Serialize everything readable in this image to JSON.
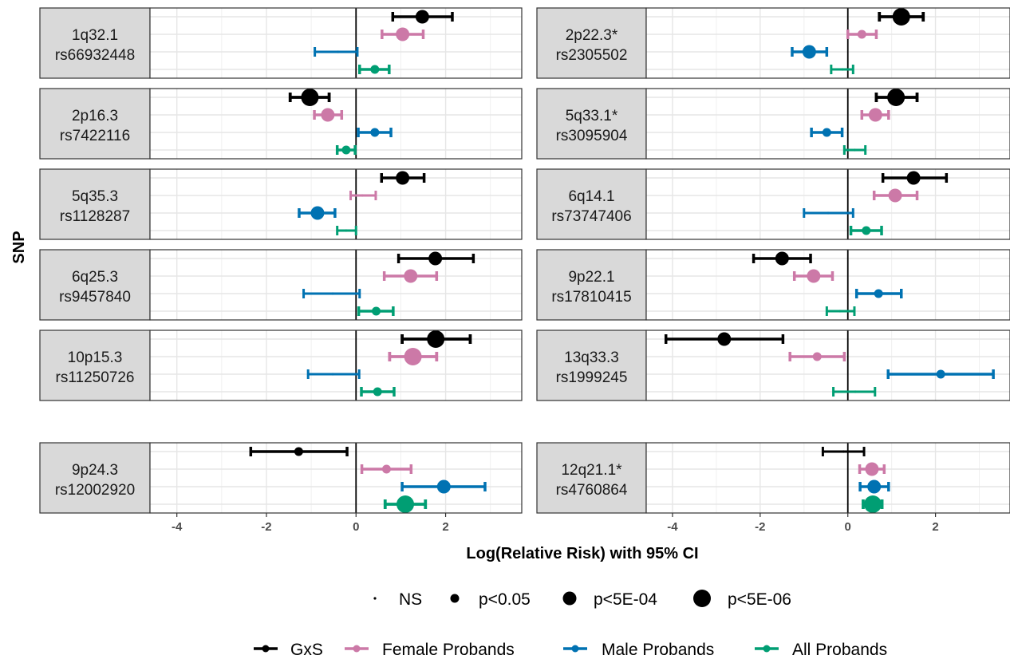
{
  "chart_data": {
    "type": "forest",
    "xlabel": "Log(Relative Risk) with 95% CI",
    "ylabel": "SNP",
    "xlim": [
      -4.6,
      3.7
    ],
    "x_ticks": [
      -4,
      -2,
      0,
      2
    ],
    "x_tick_labels": [
      "-4",
      "-2",
      "0",
      "2"
    ],
    "grid": true,
    "colors": {
      "GxS": "#000000",
      "Female Probands": "#CC79A7",
      "Male Probands": "#0072B2",
      "All Probands": "#009E73"
    },
    "size_legend": [
      {
        "label": "NS",
        "level": 0
      },
      {
        "label": "p<0.05",
        "level": 1
      },
      {
        "label": "p<5E-04",
        "level": 2
      },
      {
        "label": "p<5E-06",
        "level": 3
      }
    ],
    "color_legend": [
      "GxS",
      "Female Probands",
      "Male Probands",
      "All Probands"
    ],
    "panels": [
      {
        "locus": "1q32.1",
        "snp": "rs66932448",
        "rows": [
          {
            "group": "GxS",
            "est": 1.48,
            "lo": 0.82,
            "hi": 2.15,
            "sig": 2
          },
          {
            "group": "Female Probands",
            "est": 1.04,
            "lo": 0.58,
            "hi": 1.5,
            "sig": 2
          },
          {
            "group": "Male Probands",
            "est": -0.4,
            "lo": -0.92,
            "hi": 0.03,
            "sig": 0
          },
          {
            "group": "All Probands",
            "est": 0.42,
            "lo": 0.08,
            "hi": 0.74,
            "sig": 1
          }
        ]
      },
      {
        "locus": "2p22.3*",
        "snp": "rs2305502",
        "rows": [
          {
            "group": "GxS",
            "est": 1.22,
            "lo": 0.72,
            "hi": 1.72,
            "sig": 3
          },
          {
            "group": "Female Probands",
            "est": 0.32,
            "lo": 0.0,
            "hi": 0.65,
            "sig": 1
          },
          {
            "group": "Male Probands",
            "est": -0.88,
            "lo": -1.27,
            "hi": -0.48,
            "sig": 2
          },
          {
            "group": "All Probands",
            "est": -0.12,
            "lo": -0.38,
            "hi": 0.12,
            "sig": 0
          }
        ]
      },
      {
        "locus": "2p16.3",
        "snp": "rs7422116",
        "rows": [
          {
            "group": "GxS",
            "est": -1.03,
            "lo": -1.47,
            "hi": -0.6,
            "sig": 3
          },
          {
            "group": "Female Probands",
            "est": -0.63,
            "lo": -0.93,
            "hi": -0.32,
            "sig": 2
          },
          {
            "group": "Male Probands",
            "est": 0.42,
            "lo": 0.05,
            "hi": 0.78,
            "sig": 1
          },
          {
            "group": "All Probands",
            "est": -0.22,
            "lo": -0.42,
            "hi": -0.02,
            "sig": 1
          }
        ]
      },
      {
        "locus": "5q33.1*",
        "snp": "rs3095904",
        "rows": [
          {
            "group": "GxS",
            "est": 1.1,
            "lo": 0.65,
            "hi": 1.58,
            "sig": 3
          },
          {
            "group": "Female Probands",
            "est": 0.63,
            "lo": 0.32,
            "hi": 0.93,
            "sig": 2
          },
          {
            "group": "Male Probands",
            "est": -0.48,
            "lo": -0.83,
            "hi": -0.13,
            "sig": 1
          },
          {
            "group": "All Probands",
            "est": 0.16,
            "lo": -0.08,
            "hi": 0.4,
            "sig": 0
          }
        ]
      },
      {
        "locus": "5q35.3",
        "snp": "rs1128287",
        "rows": [
          {
            "group": "GxS",
            "est": 1.04,
            "lo": 0.57,
            "hi": 1.52,
            "sig": 2
          },
          {
            "group": "Female Probands",
            "est": 0.14,
            "lo": -0.12,
            "hi": 0.44,
            "sig": 0
          },
          {
            "group": "Male Probands",
            "est": -0.86,
            "lo": -1.27,
            "hi": -0.47,
            "sig": 2
          },
          {
            "group": "All Probands",
            "est": -0.22,
            "lo": -0.42,
            "hi": 0.0,
            "sig": 0
          }
        ]
      },
      {
        "locus": "6q14.1",
        "snp": "rs73747406",
        "rows": [
          {
            "group": "GxS",
            "est": 1.5,
            "lo": 0.8,
            "hi": 2.25,
            "sig": 2
          },
          {
            "group": "Female Probands",
            "est": 1.08,
            "lo": 0.6,
            "hi": 1.58,
            "sig": 2
          },
          {
            "group": "Male Probands",
            "est": -0.45,
            "lo": -1.0,
            "hi": 0.12,
            "sig": 0
          },
          {
            "group": "All Probands",
            "est": 0.42,
            "lo": 0.07,
            "hi": 0.77,
            "sig": 1
          }
        ]
      },
      {
        "locus": "6q25.3",
        "snp": "rs9457840",
        "rows": [
          {
            "group": "GxS",
            "est": 1.77,
            "lo": 0.95,
            "hi": 2.62,
            "sig": 2
          },
          {
            "group": "Female Probands",
            "est": 1.22,
            "lo": 0.63,
            "hi": 1.8,
            "sig": 2
          },
          {
            "group": "Male Probands",
            "est": -0.52,
            "lo": -1.17,
            "hi": 0.08,
            "sig": 0
          },
          {
            "group": "All Probands",
            "est": 0.45,
            "lo": 0.06,
            "hi": 0.83,
            "sig": 1
          }
        ]
      },
      {
        "locus": "9p22.1",
        "snp": "rs17810415",
        "rows": [
          {
            "group": "GxS",
            "est": -1.5,
            "lo": -2.15,
            "hi": -0.85,
            "sig": 2
          },
          {
            "group": "Female Probands",
            "est": -0.78,
            "lo": -1.22,
            "hi": -0.35,
            "sig": 2
          },
          {
            "group": "Male Probands",
            "est": 0.7,
            "lo": 0.2,
            "hi": 1.22,
            "sig": 1
          },
          {
            "group": "All Probands",
            "est": -0.18,
            "lo": -0.48,
            "hi": 0.15,
            "sig": 0
          }
        ]
      },
      {
        "locus": "10p15.3",
        "snp": "rs11250726",
        "rows": [
          {
            "group": "GxS",
            "est": 1.78,
            "lo": 1.03,
            "hi": 2.55,
            "sig": 3
          },
          {
            "group": "Female Probands",
            "est": 1.27,
            "lo": 0.75,
            "hi": 1.8,
            "sig": 3
          },
          {
            "group": "Male Probands",
            "est": -0.52,
            "lo": -1.07,
            "hi": 0.07,
            "sig": 0
          },
          {
            "group": "All Probands",
            "est": 0.48,
            "lo": 0.12,
            "hi": 0.85,
            "sig": 1
          }
        ]
      },
      {
        "locus": "13q33.3",
        "snp": "rs1999245",
        "rows": [
          {
            "group": "GxS",
            "est": -2.82,
            "lo": -4.15,
            "hi": -1.48,
            "sig": 2
          },
          {
            "group": "Female Probands",
            "est": -0.7,
            "lo": -1.32,
            "hi": -0.08,
            "sig": 1
          },
          {
            "group": "Male Probands",
            "est": 2.12,
            "lo": 0.92,
            "hi": 3.32,
            "sig": 1
          },
          {
            "group": "All Probands",
            "est": 0.17,
            "lo": -0.33,
            "hi": 0.62,
            "sig": 0
          }
        ]
      },
      {
        "locus": "9p24.3",
        "snp": "rs12002920",
        "rows": [
          {
            "group": "GxS",
            "est": -1.28,
            "lo": -2.35,
            "hi": -0.2,
            "sig": 1
          },
          {
            "group": "Female Probands",
            "est": 0.68,
            "lo": 0.13,
            "hi": 1.23,
            "sig": 1
          },
          {
            "group": "Male Probands",
            "est": 1.96,
            "lo": 1.03,
            "hi": 2.88,
            "sig": 2
          },
          {
            "group": "All Probands",
            "est": 1.1,
            "lo": 0.65,
            "hi": 1.55,
            "sig": 3
          }
        ]
      },
      {
        "locus": "12q21.1*",
        "snp": "rs4760864",
        "rows": [
          {
            "group": "GxS",
            "est": -0.1,
            "lo": -0.57,
            "hi": 0.37,
            "sig": 0
          },
          {
            "group": "Female Probands",
            "est": 0.55,
            "lo": 0.27,
            "hi": 0.83,
            "sig": 2
          },
          {
            "group": "Male Probands",
            "est": 0.6,
            "lo": 0.28,
            "hi": 0.93,
            "sig": 2
          },
          {
            "group": "All Probands",
            "est": 0.57,
            "lo": 0.35,
            "hi": 0.78,
            "sig": 3
          }
        ]
      }
    ]
  }
}
